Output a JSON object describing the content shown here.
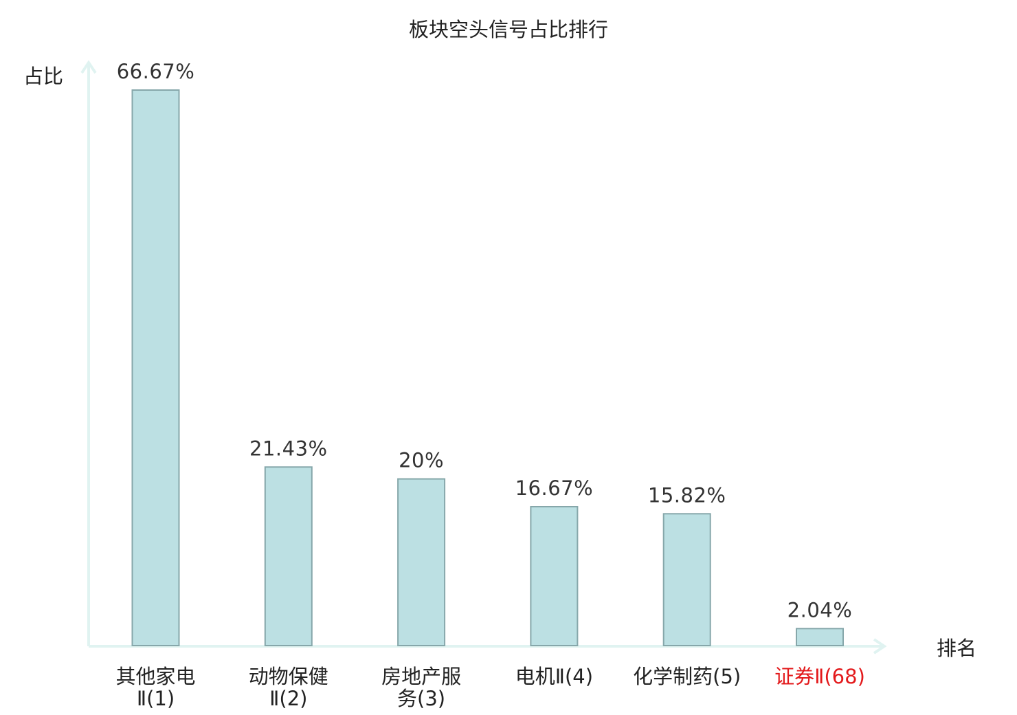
{
  "chart_data": {
    "type": "bar",
    "title": "板块空头信号占比排行",
    "xlabel": "排名",
    "ylabel": "占比",
    "categories": [
      {
        "name_lines": [
          "其他家电",
          "Ⅱ(1)"
        ],
        "highlight": false
      },
      {
        "name_lines": [
          "动物保健",
          "Ⅱ(2)"
        ],
        "highlight": false
      },
      {
        "name_lines": [
          "房地产服",
          "务(3)"
        ],
        "highlight": false
      },
      {
        "name_lines": [
          "电机Ⅱ(4)"
        ],
        "highlight": false
      },
      {
        "name_lines": [
          "化学制药(5)"
        ],
        "highlight": false
      },
      {
        "name_lines": [
          "证券Ⅱ(68)"
        ],
        "highlight": true
      }
    ],
    "values": [
      66.67,
      21.43,
      20,
      16.67,
      15.82,
      2.04
    ],
    "value_labels": [
      "66.67%",
      "21.43%",
      "20%",
      "16.67%",
      "15.82%",
      "2.04%"
    ],
    "ylim": [
      0,
      66.67
    ],
    "grid": false,
    "legend": "none",
    "colors": {
      "bar_fill": "#bce0e3",
      "bar_stroke": "#86a7aa",
      "axis": "#e0f3f1",
      "label_text": "#222222",
      "highlight_text": "#e31a1c"
    }
  }
}
